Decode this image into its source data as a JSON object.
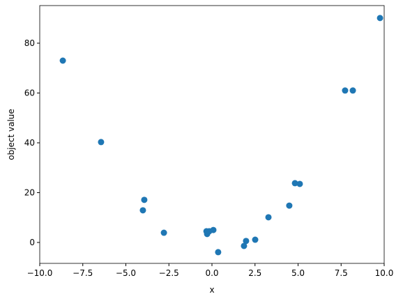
{
  "chart_data": {
    "type": "scatter",
    "xlabel": "x",
    "ylabel": "object value",
    "x": [
      -8.66,
      -6.44,
      -4.01,
      -3.93,
      -2.79,
      -0.32,
      -0.28,
      -0.16,
      0.08,
      0.36,
      1.86,
      1.98,
      2.51,
      3.28,
      4.49,
      4.82,
      5.1,
      7.73,
      8.18,
      9.76
    ],
    "values": [
      73.0,
      40.3,
      12.9,
      17.1,
      3.9,
      4.5,
      3.4,
      4.5,
      5.0,
      -3.9,
      -1.4,
      0.6,
      1.1,
      10.1,
      14.8,
      23.8,
      23.5,
      61.0,
      61.0,
      90.1
    ],
    "color": "#1f77b4",
    "xlim": [
      -10,
      10
    ],
    "xticks": [
      {
        "value": -10,
        "label": "−10.0"
      },
      {
        "value": -7.5,
        "label": "−7.5"
      },
      {
        "value": -5,
        "label": "−5.0"
      },
      {
        "value": -2.5,
        "label": "−2.5"
      },
      {
        "value": 0,
        "label": "0.0"
      },
      {
        "value": 2.5,
        "label": "2.5"
      },
      {
        "value": 5,
        "label": "5.0"
      },
      {
        "value": 7.5,
        "label": "7.5"
      },
      {
        "value": 10,
        "label": "10.0"
      }
    ],
    "ylim": [
      -8.4,
      95.1
    ],
    "yticks": [
      0,
      20,
      40,
      60,
      80
    ],
    "grid": false
  }
}
